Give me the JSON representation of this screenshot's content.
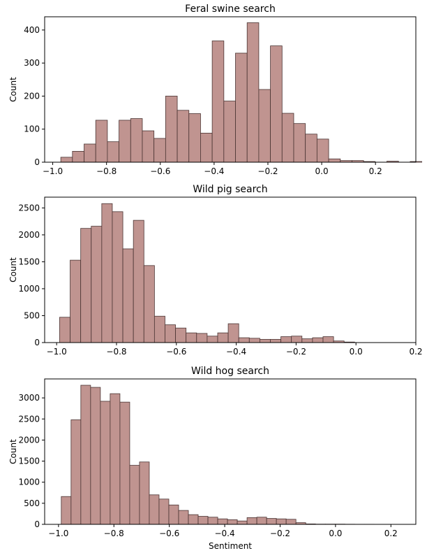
{
  "figure": {
    "xlabel": "Sentiment",
    "bar_color": "#c09490",
    "edge_color": "#4a3432"
  },
  "chart_data": [
    {
      "type": "bar",
      "title": "Feral swine search",
      "xlabel": "",
      "ylabel": "Count",
      "xlim": [
        -1.03,
        0.35
      ],
      "ylim": [
        0,
        440
      ],
      "xticks": [
        -1.0,
        -0.8,
        -0.6,
        -0.4,
        -0.2,
        0.0,
        0.2
      ],
      "xtick_labels": [
        "−1.0",
        "−0.8",
        "−0.6",
        "−0.4",
        "−0.2",
        "0.0",
        "0.2"
      ],
      "yticks": [
        0,
        100,
        200,
        300,
        400
      ],
      "ytick_labels": [
        "0",
        "100",
        "200",
        "300",
        "400"
      ],
      "bin_start": -0.97,
      "bin_width": 0.0433,
      "values": [
        15,
        33,
        55,
        127,
        62,
        127,
        132,
        95,
        72,
        200,
        157,
        147,
        88,
        367,
        185,
        330,
        422,
        220,
        352,
        148,
        117,
        85,
        70,
        10,
        5,
        5,
        2,
        0,
        3,
        0,
        2
      ],
      "grid": false
    },
    {
      "type": "bar",
      "title": "Wild pig search",
      "xlabel": "",
      "ylabel": "Count",
      "xlim": [
        -1.04,
        0.2
      ],
      "ylim": [
        0,
        2700
      ],
      "xticks": [
        -1.0,
        -0.8,
        -0.6,
        -0.4,
        -0.2,
        0.0,
        0.2
      ],
      "xtick_labels": [
        "−1.0",
        "−0.8",
        "−0.6",
        "−0.4",
        "−0.2",
        "0.0",
        "0.2"
      ],
      "yticks": [
        0,
        500,
        1000,
        1500,
        2000,
        2500
      ],
      "ytick_labels": [
        "0",
        "500",
        "1000",
        "1500",
        "2000",
        "2500"
      ],
      "bin_start": -0.99,
      "bin_width": 0.0352,
      "values": [
        470,
        1530,
        2120,
        2160,
        2580,
        2430,
        1740,
        2270,
        1430,
        490,
        330,
        270,
        180,
        170,
        120,
        180,
        350,
        90,
        80,
        60,
        60,
        110,
        120,
        70,
        90,
        110,
        30,
        10
      ],
      "grid": false
    },
    {
      "type": "bar",
      "title": "Wild hog search",
      "xlabel": "Sentiment",
      "ylabel": "Count",
      "xlim": [
        -1.05,
        0.29
      ],
      "ylim": [
        0,
        3450
      ],
      "xticks": [
        -1.0,
        -0.8,
        -0.6,
        -0.4,
        -0.2,
        0.0,
        0.2
      ],
      "xtick_labels": [
        "−1.0",
        "−0.8",
        "−0.6",
        "−0.4",
        "−0.2",
        "0.0",
        "0.2"
      ],
      "yticks": [
        0,
        500,
        1000,
        1500,
        2000,
        2500,
        3000
      ],
      "ytick_labels": [
        "0",
        "500",
        "1000",
        "1500",
        "2000",
        "2500",
        "3000"
      ],
      "bin_start": -0.99,
      "bin_width": 0.0353,
      "values": [
        660,
        2480,
        3300,
        3250,
        2920,
        3100,
        2900,
        1400,
        1480,
        700,
        600,
        460,
        330,
        230,
        190,
        170,
        130,
        110,
        80,
        160,
        170,
        140,
        130,
        120,
        40,
        10,
        5,
        5,
        5,
        3,
        2,
        2
      ],
      "grid": false
    }
  ]
}
